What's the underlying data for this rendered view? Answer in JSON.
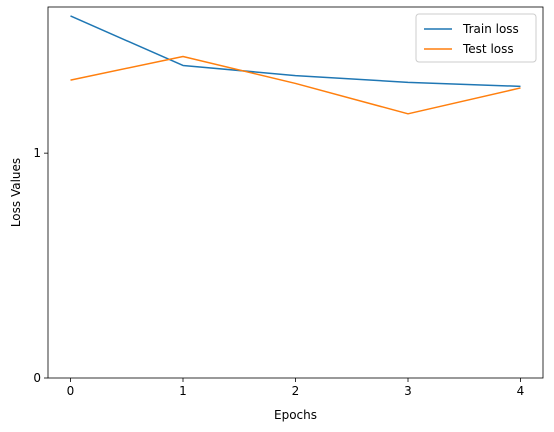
{
  "chart_data": {
    "type": "line",
    "title": "",
    "xlabel": "Epochs",
    "ylabel": "Loss Values",
    "x": [
      0,
      1,
      2,
      3,
      4
    ],
    "xticks": [
      0,
      1,
      2,
      3,
      4
    ],
    "yticks": [
      0,
      1
    ],
    "xlim": [
      -0.2,
      4.2
    ],
    "ylim": [
      0,
      1.65
    ],
    "grid": false,
    "legend_position": "top-right",
    "series": [
      {
        "name": "Train loss",
        "color": "#1f77b4",
        "values": [
          1.61,
          1.39,
          1.345,
          1.315,
          1.297
        ]
      },
      {
        "name": "Test loss",
        "color": "#ff7f0e",
        "values": [
          1.325,
          1.43,
          1.31,
          1.175,
          1.29
        ]
      }
    ]
  }
}
